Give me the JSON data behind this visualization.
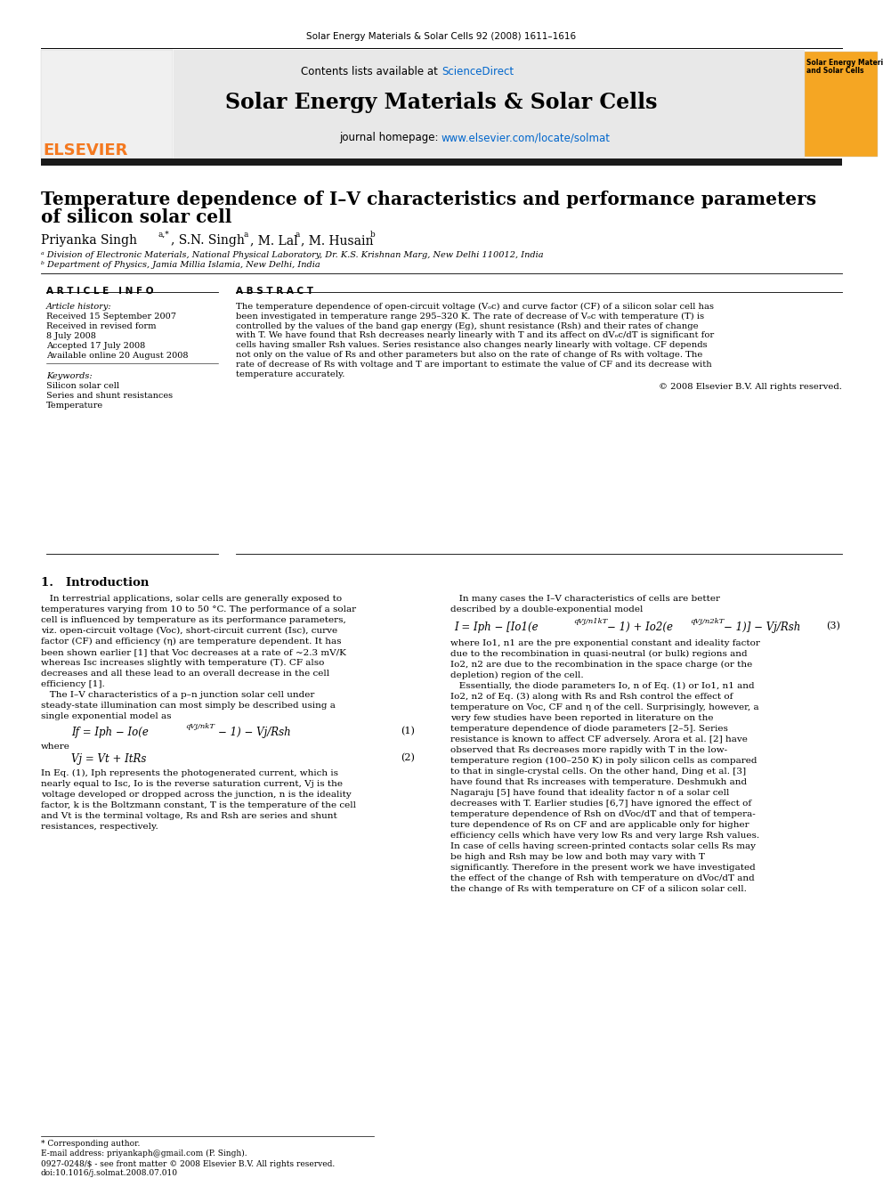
{
  "journal_ref": "Solar Energy Materials & Solar Cells 92 (2008) 1611–1616",
  "header_text_pre": "Contents lists available at ",
  "sciencedirect_text": "ScienceDirect",
  "journal_title": "Solar Energy Materials & Solar Cells",
  "journal_homepage_label": "journal homepage: ",
  "journal_homepage_url": "www.elsevier.com/locate/solmat",
  "elsevier_text": "ELSEVIER",
  "cover_line1": "Solar Energy Materials",
  "cover_line2": "and Solar Cells",
  "paper_title_line1": "Temperature dependence of I–V characteristics and performance parameters",
  "paper_title_line2": "of silicon solar cell",
  "author_name1": "Priyanka Singh",
  "author_sup1": "a,*",
  "author_sep1": ", ",
  "author_name2": "S.N. Singh",
  "author_sup2": "a",
  "author_sep2": ", ",
  "author_name3": "M. Lal",
  "author_sup3": "a",
  "author_sep3": ", ",
  "author_name4": "M. Husain",
  "author_sup4": "b",
  "affil_a": "ᵃ Division of Electronic Materials, National Physical Laboratory, Dr. K.S. Krishnan Marg, New Delhi 110012, India",
  "affil_b": "ᵇ Department of Physics, Jamia Millia Islamia, New Delhi, India",
  "article_info_header": "A R T I C L E   I N F O",
  "article_history_label": "Article history:",
  "received_1": "Received 15 September 2007",
  "revised_label": "Received in revised form",
  "revised_date": "8 July 2008",
  "accepted": "Accepted 17 July 2008",
  "available": "Available online 20 August 2008",
  "keywords_label": "Keywords:",
  "keyword1": "Silicon solar cell",
  "keyword2": "Series and shunt resistances",
  "keyword3": "Temperature",
  "abstract_header": "A B S T R A C T",
  "abstract_lines": [
    "The temperature dependence of open-circuit voltage (Vₒc) and curve factor (CF) of a silicon solar cell has",
    "been investigated in temperature range 295–320 K. The rate of decrease of Vₒc with temperature (T) is",
    "controlled by the values of the band gap energy (Eg), shunt resistance (Rsh) and their rates of change",
    "with T. We have found that Rsh decreases nearly linearly with T and its affect on dVₒc/dT is significant for",
    "cells having smaller Rsh values. Series resistance also changes nearly linearly with voltage. CF depends",
    "not only on the value of Rs and other parameters but also on the rate of change of Rs with voltage. The",
    "rate of decrease of Rs with voltage and T are important to estimate the value of CF and its decrease with",
    "temperature accurately."
  ],
  "copyright": "© 2008 Elsevier B.V. All rights reserved.",
  "intro_heading": "1.   Introduction",
  "intro_col1_lines": [
    "   In terrestrial applications, solar cells are generally exposed to",
    "temperatures varying from 10 to 50 °C. The performance of a solar",
    "cell is influenced by temperature as its performance parameters,",
    "viz. open-circuit voltage (Voc), short-circuit current (Isc), curve",
    "factor (CF) and efficiency (η) are temperature dependent. It has",
    "been shown earlier [1] that Voc decreases at a rate of ~2.3 mV/K",
    "whereas Isc increases slightly with temperature (T). CF also",
    "decreases and all these lead to an overall decrease in the cell",
    "efficiency [1].",
    "   The I–V characteristics of a p–n junction solar cell under",
    "steady-state illumination can most simply be described using a",
    "single exponential model as"
  ],
  "eq1_left": "If = Iph − Io",
  "eq1_exp": "eqVj/nkT",
  "eq1_right": " − 1) − Vj/Rsh",
  "eq1_paren": "(",
  "eq1_num": "(1)",
  "where_text": "where",
  "eq2_text": "Vj = Vt + ItRs",
  "eq2_num": "(2)",
  "eq_exp_lines": [
    "In Eq. (1), Iph represents the photogenerated current, which is",
    "nearly equal to Isc, Io is the reverse saturation current, Vj is the",
    "voltage developed or dropped across the junction, n is the ideality",
    "factor, k is the Boltzmann constant, T is the temperature of the cell",
    "and Vt is the terminal voltage, Rs and Rsh are series and shunt",
    "resistances, respectively."
  ],
  "col2_intro_lines": [
    "   In many cases the I–V characteristics of cells are better",
    "described by a double-exponential model"
  ],
  "eq3_left": "I = Iph −",
  "eq3_bracket_l": "[",
  "eq3_i1": "Io1",
  "eq3_paren1": "(",
  "eq3_exp1": "eqVj/n1kT",
  "eq3_mid": " − 1) + Io2",
  "eq3_paren2": "(",
  "eq3_exp2": "eqVj/n2kT",
  "eq3_right": " − 1)",
  "eq3_bracket_r": "]",
  "eq3_tail": " − Vj/Rsh",
  "eq3_num": "(3)",
  "col2_lines": [
    "where Io1, n1 are the pre exponential constant and ideality factor",
    "due to the recombination in quasi-neutral (or bulk) regions and",
    "Io2, n2 are due to the recombination in the space charge (or the",
    "depletion) region of the cell.",
    "   Essentially, the diode parameters Io, n of Eq. (1) or Io1, n1 and",
    "Io2, n2 of Eq. (3) along with Rs and Rsh control the effect of",
    "temperature on Voc, CF and η of the cell. Surprisingly, however, a",
    "very few studies have been reported in literature on the",
    "temperature dependence of diode parameters [2–5]. Series",
    "resistance is known to affect CF adversely. Arora et al. [2] have",
    "observed that Rs decreases more rapidly with T in the low-",
    "temperature region (100–250 K) in poly silicon cells as compared",
    "to that in single-crystal cells. On the other hand, Ding et al. [3]",
    "have found that Rs increases with temperature. Deshmukh and",
    "Nagaraju [5] have found that ideality factor n of a solar cell",
    "decreases with T. Earlier studies [6,7] have ignored the effect of",
    "temperature dependence of Rsh on dVoc/dT and that of tempera-",
    "ture dependence of Rs on CF and are applicable only for higher",
    "efficiency cells which have very low Rs and very large Rsh values.",
    "In case of cells having screen-printed contacts solar cells Rs may",
    "be high and Rsh may be low and both may vary with T",
    "significantly. Therefore in the present work we have investigated",
    "the effect of the change of Rsh with temperature on dVoc/dT and",
    "the change of Rs with temperature on CF of a silicon solar cell."
  ],
  "footer_star": "* Corresponding author.",
  "footer_email": "E-mail address: priyankaph@gmail.com (P. Singh).",
  "footer_issn": "0927-0248/$ - see front matter © 2008 Elsevier B.V. All rights reserved.",
  "footer_doi": "doi:10.1016/j.solmat.2008.07.010",
  "bg_color": "#ffffff",
  "link_blue": "#0066cc",
  "orange": "#f47920",
  "header_gray": "#e8e8e8",
  "dark_bar": "#1a1a1a"
}
